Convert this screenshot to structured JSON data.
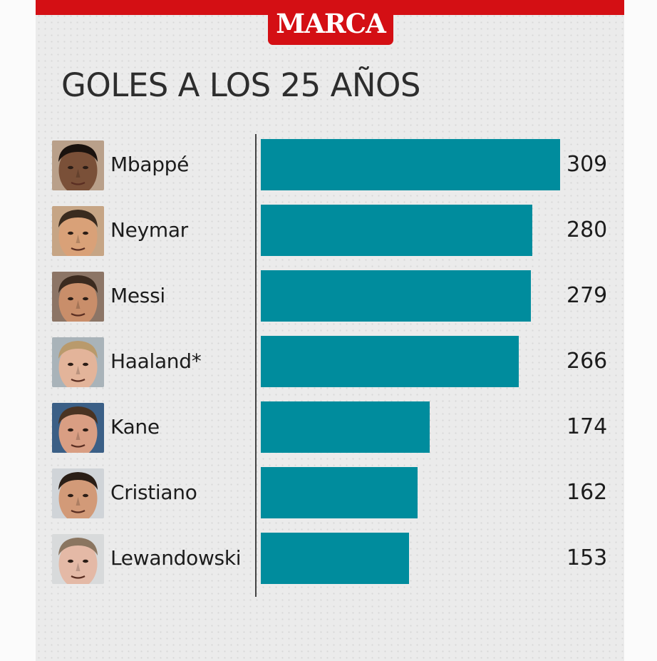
{
  "brand": {
    "logo_text": "MARCA",
    "color": "#d40f14"
  },
  "chart_data": {
    "type": "bar",
    "orientation": "horizontal",
    "title": "GOLES A LOS 25 AÑOS",
    "categories": [
      "Mbappé",
      "Neymar",
      "Messi",
      "Haaland*",
      "Kane",
      "Cristiano",
      "Lewandowski"
    ],
    "values": [
      309,
      280,
      279,
      266,
      174,
      162,
      153
    ],
    "data_labels": [
      "309",
      "280",
      "279",
      "266",
      "174",
      "162",
      "153"
    ],
    "bar_color": "#008c9d",
    "grid": false,
    "legend": "none"
  },
  "players": [
    {
      "name": "Mbappé",
      "goals": "309",
      "avatar_icon": "mbappe-photo-icon",
      "skin": "#7a5038",
      "hair": "#1a120e",
      "bg": "#b9a08a"
    },
    {
      "name": "Neymar",
      "goals": "280",
      "avatar_icon": "neymar-photo-icon",
      "skin": "#d9a178",
      "hair": "#3a2b1f",
      "bg": "#c6a585"
    },
    {
      "name": "Messi",
      "goals": "279",
      "avatar_icon": "messi-photo-icon",
      "skin": "#c98e6a",
      "hair": "#3b2a1f",
      "bg": "#8c7566"
    },
    {
      "name": "Haaland*",
      "goals": "266",
      "avatar_icon": "haaland-photo-icon",
      "skin": "#e3b49a",
      "hair": "#b99a6c",
      "bg": "#a9b3b9"
    },
    {
      "name": "Kane",
      "goals": "174",
      "avatar_icon": "kane-photo-icon",
      "skin": "#d99e83",
      "hair": "#4a3322",
      "bg": "#3b5f86"
    },
    {
      "name": "Cristiano",
      "goals": "162",
      "avatar_icon": "cristiano-photo-icon",
      "skin": "#d29a78",
      "hair": "#2a1e16",
      "bg": "#d0d4d8"
    },
    {
      "name": "Lewandowski",
      "goals": "153",
      "avatar_icon": "lewandowski-photo-icon",
      "skin": "#e4b9a6",
      "hair": "#8a7560",
      "bg": "#d8dadb"
    }
  ]
}
